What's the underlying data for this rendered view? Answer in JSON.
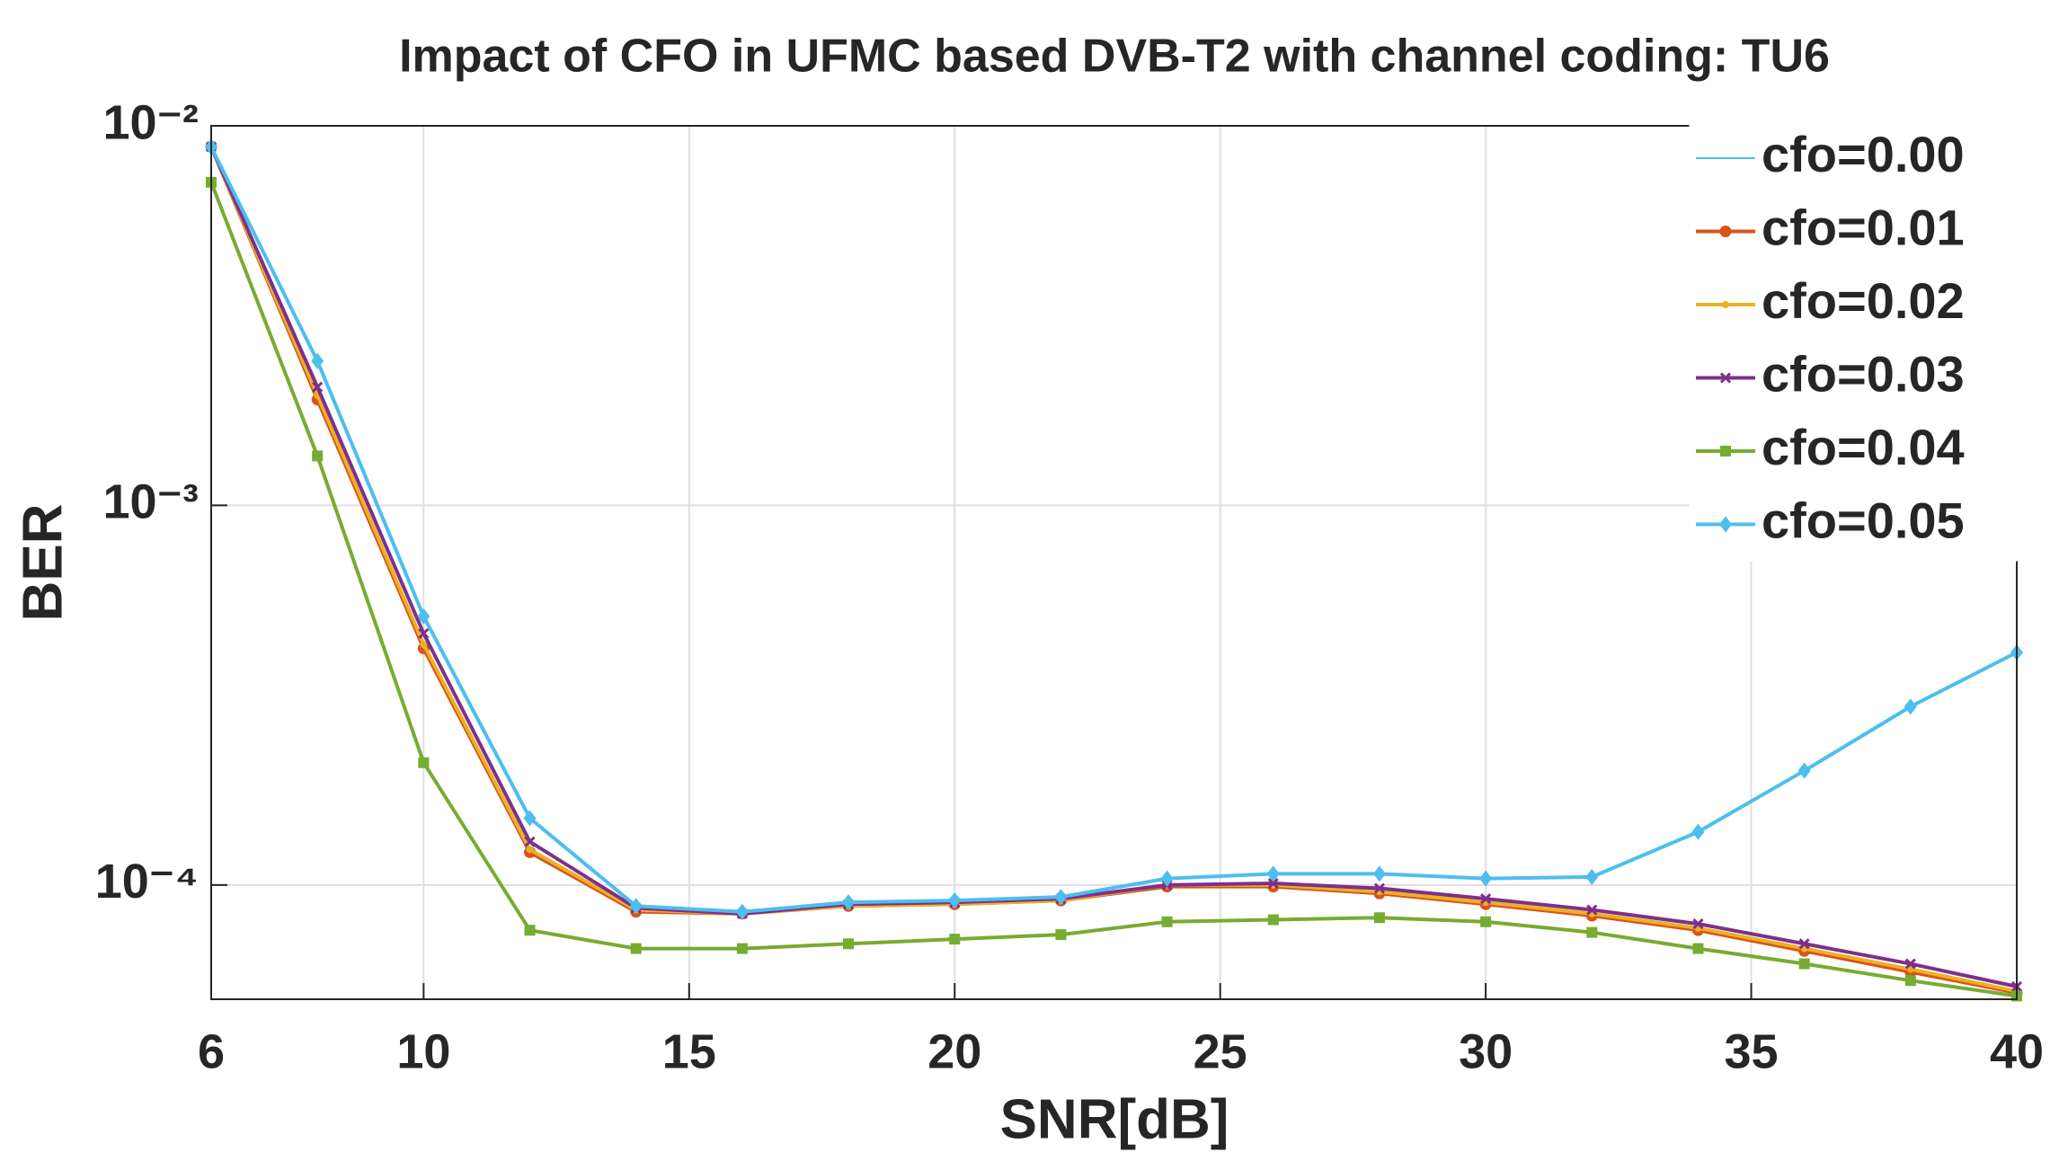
{
  "chart_data": {
    "type": "line",
    "title": "Impact of CFO in UFMC based DVB-T2 with channel coding: TU6",
    "xlabel": "SNR[dB]",
    "ylabel": "BER",
    "x": [
      6,
      8,
      10,
      12,
      14,
      16,
      18,
      20,
      22,
      24,
      26,
      28,
      30,
      32,
      34,
      36,
      38,
      40
    ],
    "xlim": [
      6,
      40
    ],
    "xticks": [
      6,
      10,
      15,
      20,
      25,
      30,
      35,
      40
    ],
    "ylim": [
      5e-05,
      0.01
    ],
    "ylog": true,
    "yticks": [
      {
        "value": 0.0001,
        "label": "10⁻⁴"
      },
      {
        "value": 0.001,
        "label": "10⁻³"
      },
      {
        "value": 0.01,
        "label": "10⁻²"
      }
    ],
    "grid": true,
    "legend": "upper right",
    "series": [
      {
        "name": "cfo=0.00",
        "color": "#4DBEEE",
        "marker": "none",
        "values": [
          0.0088,
          0.0019,
          0.00042,
          0.000121,
          8.5e-05,
          8.4e-05,
          8.8e-05,
          8.9e-05,
          9.1e-05,
          9.9e-05,
          9.9e-05,
          9.5e-05,
          8.9e-05,
          8.3e-05,
          7.6e-05,
          6.7e-05,
          5.9e-05,
          5.2e-05
        ]
      },
      {
        "name": "cfo=0.01",
        "color": "#D95319",
        "marker": "circle",
        "values": [
          0.0088,
          0.0019,
          0.00042,
          0.000122,
          8.5e-05,
          8.4e-05,
          8.8e-05,
          8.9e-05,
          9.1e-05,
          9.9e-05,
          9.9e-05,
          9.5e-05,
          8.9e-05,
          8.3e-05,
          7.6e-05,
          6.7e-05,
          5.9e-05,
          5.2e-05
        ]
      },
      {
        "name": "cfo=0.02",
        "color": "#EDB120",
        "marker": "dot",
        "values": [
          0.0088,
          0.00195,
          0.00043,
          0.000124,
          8.6e-05,
          8.4e-05,
          8.8e-05,
          8.9e-05,
          9.1e-05,
          0.0001,
          0.0001,
          9.6e-05,
          9e-05,
          8.4e-05,
          7.7e-05,
          6.8e-05,
          6e-05,
          5.25e-05
        ]
      },
      {
        "name": "cfo=0.03",
        "color": "#7E2F8E",
        "marker": "x",
        "values": [
          0.0088,
          0.00205,
          0.00046,
          0.00013,
          8.7e-05,
          8.4e-05,
          8.9e-05,
          9e-05,
          9.2e-05,
          0.0001,
          0.000101,
          9.8e-05,
          9.2e-05,
          8.6e-05,
          7.9e-05,
          7e-05,
          6.2e-05,
          5.4e-05
        ]
      },
      {
        "name": "cfo=0.04",
        "color": "#77AC30",
        "marker": "square",
        "values": [
          0.0071,
          0.00135,
          0.00021,
          7.6e-05,
          6.8e-05,
          6.8e-05,
          7e-05,
          7.2e-05,
          7.4e-05,
          8e-05,
          8.1e-05,
          8.2e-05,
          8e-05,
          7.5e-05,
          6.8e-05,
          6.2e-05,
          5.6e-05,
          5.1e-05
        ]
      },
      {
        "name": "cfo=0.05",
        "color": "#4DBEEE",
        "marker": "diamond",
        "values": [
          0.0088,
          0.0024,
          0.00051,
          0.00015,
          8.8e-05,
          8.5e-05,
          9e-05,
          9.1e-05,
          9.3e-05,
          0.000104,
          0.000107,
          0.000107,
          0.000104,
          0.000105,
          0.000138,
          0.0002,
          0.000295,
          0.00041
        ]
      }
    ]
  }
}
